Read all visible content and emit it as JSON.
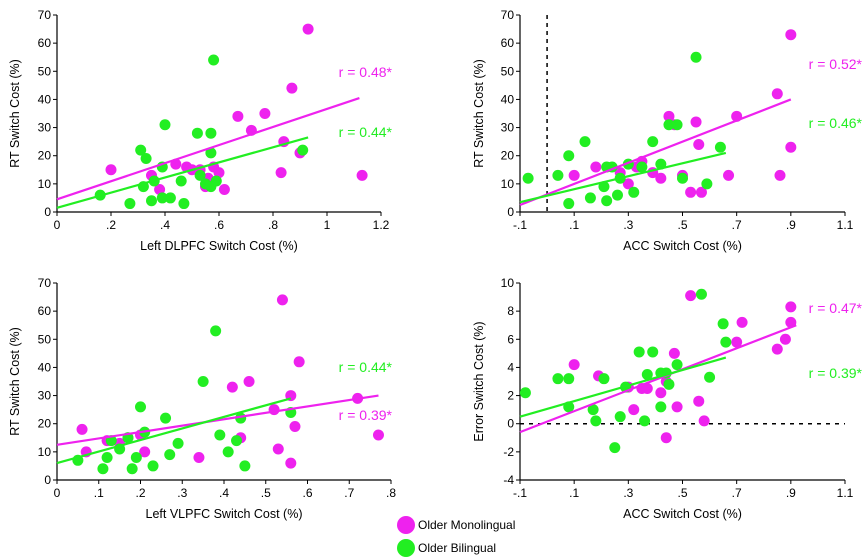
{
  "colors": {
    "monolingual": "#ee22ee",
    "bilingual": "#22ee22"
  },
  "legend": [
    {
      "key": "monolingual",
      "label": "Older Monolingual"
    },
    {
      "key": "bilingual",
      "label": "Older Bilingual"
    }
  ],
  "chart_data": [
    {
      "type": "scatter",
      "xlabel": "Left DLPFC Switch Cost (%)",
      "ylabel": "RT Switch Cost (%)",
      "xlim": [
        0,
        1.2
      ],
      "ylim": [
        0,
        70
      ],
      "xticks": [
        0,
        0.2,
        0.4,
        0.6,
        0.8,
        1,
        1.2
      ],
      "xtick_labels": [
        "0",
        ".2",
        ".4",
        ".6",
        ".8",
        "1",
        "1.2"
      ],
      "yticks": [
        0,
        10,
        20,
        30,
        40,
        50,
        60,
        70
      ],
      "ytick_labels": [
        "0",
        "10",
        "20",
        "30",
        "40",
        "50",
        "60",
        "70"
      ],
      "series": [
        {
          "key": "monolingual",
          "r_label": "r = 0.48*",
          "fit": [
            [
              0,
              4.5
            ],
            [
              1.12,
              40.5
            ]
          ],
          "points": [
            [
              0.2,
              15
            ],
            [
              0.35,
              13
            ],
            [
              0.38,
              8
            ],
            [
              0.44,
              17
            ],
            [
              0.48,
              16
            ],
            [
              0.5,
              15
            ],
            [
              0.53,
              15
            ],
            [
              0.55,
              9
            ],
            [
              0.56,
              12
            ],
            [
              0.58,
              16
            ],
            [
              0.6,
              14
            ],
            [
              0.62,
              8
            ],
            [
              0.67,
              34
            ],
            [
              0.72,
              29
            ],
            [
              0.77,
              35
            ],
            [
              0.83,
              14
            ],
            [
              0.84,
              25
            ],
            [
              0.87,
              44
            ],
            [
              0.9,
              21
            ],
            [
              0.93,
              65
            ],
            [
              1.13,
              13
            ]
          ]
        },
        {
          "key": "bilingual",
          "r_label": "r = 0.44*",
          "fit": [
            [
              0,
              1.5
            ],
            [
              0.93,
              26.5
            ]
          ],
          "points": [
            [
              0.16,
              6
            ],
            [
              0.27,
              3
            ],
            [
              0.31,
              22
            ],
            [
              0.32,
              9
            ],
            [
              0.33,
              19
            ],
            [
              0.35,
              4
            ],
            [
              0.36,
              11
            ],
            [
              0.39,
              5
            ],
            [
              0.39,
              16
            ],
            [
              0.4,
              31
            ],
            [
              0.42,
              5
            ],
            [
              0.46,
              11
            ],
            [
              0.47,
              3
            ],
            [
              0.52,
              28
            ],
            [
              0.53,
              13
            ],
            [
              0.55,
              10
            ],
            [
              0.57,
              28
            ],
            [
              0.57,
              21
            ],
            [
              0.57,
              9
            ],
            [
              0.58,
              54
            ],
            [
              0.59,
              11
            ],
            [
              0.91,
              22
            ]
          ]
        }
      ]
    },
    {
      "type": "scatter",
      "xlabel": "ACC Switch Cost (%)",
      "ylabel": "RT Switch Cost (%)",
      "xlim": [
        -0.1,
        1.1
      ],
      "ylim": [
        0,
        70
      ],
      "xticks": [
        -0.1,
        0.1,
        0.3,
        0.5,
        0.7,
        0.9,
        1.1
      ],
      "xtick_labels": [
        "-.1",
        ".1",
        ".3",
        ".5",
        ".7",
        ".9",
        "1.1"
      ],
      "yticks": [
        0,
        10,
        20,
        30,
        40,
        50,
        60,
        70
      ],
      "ytick_labels": [
        "0",
        "10",
        "20",
        "30",
        "40",
        "50",
        "60",
        "70"
      ],
      "vref": 0,
      "series": [
        {
          "key": "monolingual",
          "r_label": "r = 0.52*",
          "fit": [
            [
              -0.1,
              2.5
            ],
            [
              0.9,
              40
            ]
          ],
          "points": [
            [
              0.1,
              13
            ],
            [
              0.18,
              16
            ],
            [
              0.27,
              14
            ],
            [
              0.3,
              10
            ],
            [
              0.33,
              16
            ],
            [
              0.35,
              18
            ],
            [
              0.39,
              14
            ],
            [
              0.42,
              12
            ],
            [
              0.45,
              34
            ],
            [
              0.47,
              31
            ],
            [
              0.5,
              13
            ],
            [
              0.53,
              7
            ],
            [
              0.55,
              32
            ],
            [
              0.56,
              24
            ],
            [
              0.57,
              7
            ],
            [
              0.67,
              13
            ],
            [
              0.7,
              34
            ],
            [
              0.85,
              42
            ],
            [
              0.86,
              13
            ],
            [
              0.9,
              63
            ],
            [
              0.9,
              23
            ]
          ]
        },
        {
          "key": "bilingual",
          "r_label": "r = 0.46*",
          "fit": [
            [
              -0.1,
              3.5
            ],
            [
              0.66,
              21
            ]
          ],
          "points": [
            [
              -0.07,
              12
            ],
            [
              0.04,
              13
            ],
            [
              0.08,
              20
            ],
            [
              0.08,
              3
            ],
            [
              0.14,
              25
            ],
            [
              0.16,
              5
            ],
            [
              0.21,
              9
            ],
            [
              0.22,
              4
            ],
            [
              0.22,
              16
            ],
            [
              0.24,
              16
            ],
            [
              0.26,
              6
            ],
            [
              0.27,
              12
            ],
            [
              0.3,
              17
            ],
            [
              0.32,
              7
            ],
            [
              0.35,
              16
            ],
            [
              0.39,
              25
            ],
            [
              0.42,
              17
            ],
            [
              0.45,
              31
            ],
            [
              0.48,
              31
            ],
            [
              0.5,
              12
            ],
            [
              0.55,
              55
            ],
            [
              0.59,
              10
            ],
            [
              0.64,
              23
            ]
          ]
        }
      ]
    },
    {
      "type": "scatter",
      "xlabel": "Left VLPFC Switch Cost (%)",
      "ylabel": "RT Switch Cost (%)",
      "xlim": [
        0,
        0.8
      ],
      "ylim": [
        0,
        70
      ],
      "xticks": [
        0,
        0.1,
        0.2,
        0.3,
        0.4,
        0.5,
        0.6,
        0.7,
        0.8
      ],
      "xtick_labels": [
        "0",
        ".1",
        ".2",
        ".3",
        ".4",
        ".5",
        ".6",
        ".7",
        ".8"
      ],
      "yticks": [
        0,
        10,
        20,
        30,
        40,
        50,
        60,
        70
      ],
      "ytick_labels": [
        "0",
        "10",
        "20",
        "30",
        "40",
        "50",
        "60",
        "70"
      ],
      "series": [
        {
          "key": "monolingual",
          "r_label": "r = 0.39*",
          "fit": [
            [
              0,
              12.5
            ],
            [
              0.77,
              30
            ]
          ],
          "points": [
            [
              0.06,
              18
            ],
            [
              0.07,
              10
            ],
            [
              0.12,
              14
            ],
            [
              0.15,
              13
            ],
            [
              0.17,
              15
            ],
            [
              0.2,
              16
            ],
            [
              0.21,
              10
            ],
            [
              0.34,
              8
            ],
            [
              0.42,
              33
            ],
            [
              0.44,
              15
            ],
            [
              0.46,
              35
            ],
            [
              0.52,
              25
            ],
            [
              0.54,
              64
            ],
            [
              0.53,
              11
            ],
            [
              0.56,
              6
            ],
            [
              0.56,
              30
            ],
            [
              0.58,
              42
            ],
            [
              0.57,
              19
            ],
            [
              0.72,
              29
            ],
            [
              0.77,
              16
            ]
          ]
        },
        {
          "key": "bilingual",
          "r_label": "r = 0.44*",
          "fit": [
            [
              0,
              6
            ],
            [
              0.56,
              29
            ]
          ],
          "points": [
            [
              0.05,
              7
            ],
            [
              0.11,
              4
            ],
            [
              0.12,
              8
            ],
            [
              0.13,
              14
            ],
            [
              0.15,
              11
            ],
            [
              0.17,
              15
            ],
            [
              0.18,
              4
            ],
            [
              0.19,
              8
            ],
            [
              0.2,
              26
            ],
            [
              0.21,
              17
            ],
            [
              0.23,
              5
            ],
            [
              0.26,
              22
            ],
            [
              0.27,
              9
            ],
            [
              0.29,
              13
            ],
            [
              0.35,
              35
            ],
            [
              0.38,
              53
            ],
            [
              0.39,
              16
            ],
            [
              0.41,
              10
            ],
            [
              0.43,
              14
            ],
            [
              0.44,
              22
            ],
            [
              0.45,
              5
            ],
            [
              0.56,
              24
            ]
          ]
        }
      ]
    },
    {
      "type": "scatter",
      "xlabel": "ACC Switch Cost (%)",
      "ylabel": "Error Switch Cost (%)",
      "xlim": [
        -0.1,
        1.1
      ],
      "ylim": [
        -4,
        10
      ],
      "xticks": [
        -0.1,
        0.1,
        0.3,
        0.5,
        0.7,
        0.9,
        1.1
      ],
      "xtick_labels": [
        "-.1",
        ".1",
        ".3",
        ".5",
        ".7",
        ".9",
        "1.1"
      ],
      "yticks": [
        -4,
        -2,
        0,
        2,
        4,
        6,
        8,
        10
      ],
      "ytick_labels": [
        "-4",
        "-2",
        "0",
        "2",
        "4",
        "6",
        "8",
        "10"
      ],
      "href": 0,
      "series": [
        {
          "key": "monolingual",
          "r_label": "r = 0.47*",
          "fit": [
            [
              -0.1,
              -0.6
            ],
            [
              0.92,
              7
            ]
          ],
          "points": [
            [
              0.1,
              4.2
            ],
            [
              0.19,
              3.4
            ],
            [
              0.3,
              2.6
            ],
            [
              0.32,
              1
            ],
            [
              0.35,
              2.5
            ],
            [
              0.37,
              2.5
            ],
            [
              0.42,
              2.2
            ],
            [
              0.44,
              -1
            ],
            [
              0.44,
              3
            ],
            [
              0.47,
              5
            ],
            [
              0.48,
              1.2
            ],
            [
              0.53,
              9.1
            ],
            [
              0.56,
              1.6
            ],
            [
              0.58,
              0.2
            ],
            [
              0.7,
              5.8
            ],
            [
              0.72,
              7.2
            ],
            [
              0.85,
              5.3
            ],
            [
              0.88,
              6
            ],
            [
              0.9,
              7.2
            ],
            [
              0.9,
              8.3
            ]
          ]
        },
        {
          "key": "bilingual",
          "r_label": "r = 0.39*",
          "fit": [
            [
              -0.1,
              0.5
            ],
            [
              0.66,
              4.7
            ]
          ],
          "points": [
            [
              -0.08,
              2.2
            ],
            [
              0.04,
              3.2
            ],
            [
              0.08,
              3.2
            ],
            [
              0.08,
              1.2
            ],
            [
              0.17,
              1
            ],
            [
              0.18,
              0.2
            ],
            [
              0.21,
              3.2
            ],
            [
              0.25,
              -1.7
            ],
            [
              0.27,
              0.5
            ],
            [
              0.29,
              2.6
            ],
            [
              0.34,
              5.1
            ],
            [
              0.36,
              0.2
            ],
            [
              0.37,
              3.5
            ],
            [
              0.39,
              5.1
            ],
            [
              0.42,
              1.2
            ],
            [
              0.42,
              3.6
            ],
            [
              0.44,
              3.6
            ],
            [
              0.45,
              2.8
            ],
            [
              0.48,
              4.2
            ],
            [
              0.57,
              9.2
            ],
            [
              0.6,
              3.3
            ],
            [
              0.65,
              7.1
            ],
            [
              0.66,
              5.8
            ]
          ]
        }
      ]
    }
  ]
}
